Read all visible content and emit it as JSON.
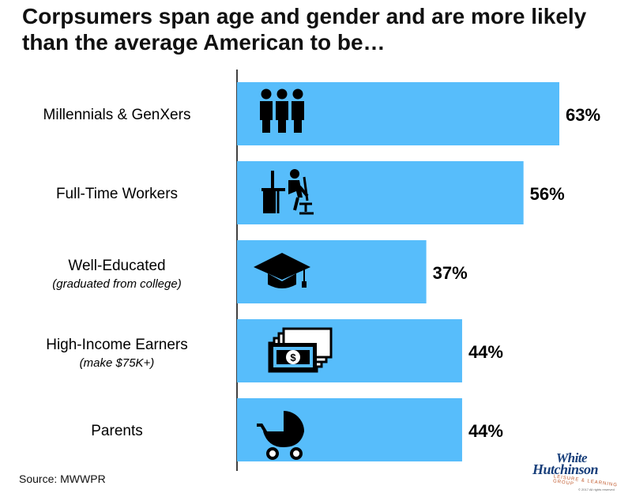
{
  "title": {
    "line1": "Corpsumers span age and gender and are more likely",
    "line2": "than the average American to be…"
  },
  "chart_data": {
    "type": "bar",
    "orientation": "horizontal",
    "categories": [
      {
        "label": "Millennials & GenXers",
        "sublabel": "",
        "icon": "group-of-people-icon"
      },
      {
        "label": "Full-Time Workers",
        "sublabel": "",
        "icon": "desk-worker-icon"
      },
      {
        "label": "Well-Educated",
        "sublabel": "(graduated from college)",
        "icon": "graduation-cap-icon"
      },
      {
        "label": "High-Income Earners",
        "sublabel": "(make $75K+)",
        "icon": "money-bills-icon"
      },
      {
        "label": "Parents",
        "sublabel": "",
        "icon": "baby-stroller-icon"
      }
    ],
    "values": [
      63,
      56,
      37,
      44,
      44
    ],
    "value_labels": [
      "63%",
      "56%",
      "37%",
      "44%",
      "44%"
    ],
    "xlim": [
      0,
      63
    ],
    "bar_color": "#57bdfb",
    "grid": false
  },
  "source": "Source: MWWPR",
  "logo": {
    "line1": "White",
    "line2": "Hutchinson",
    "tagline": "LEISURE & LEARNING GROUP",
    "copyright": "© 2017 All rights reserved"
  }
}
